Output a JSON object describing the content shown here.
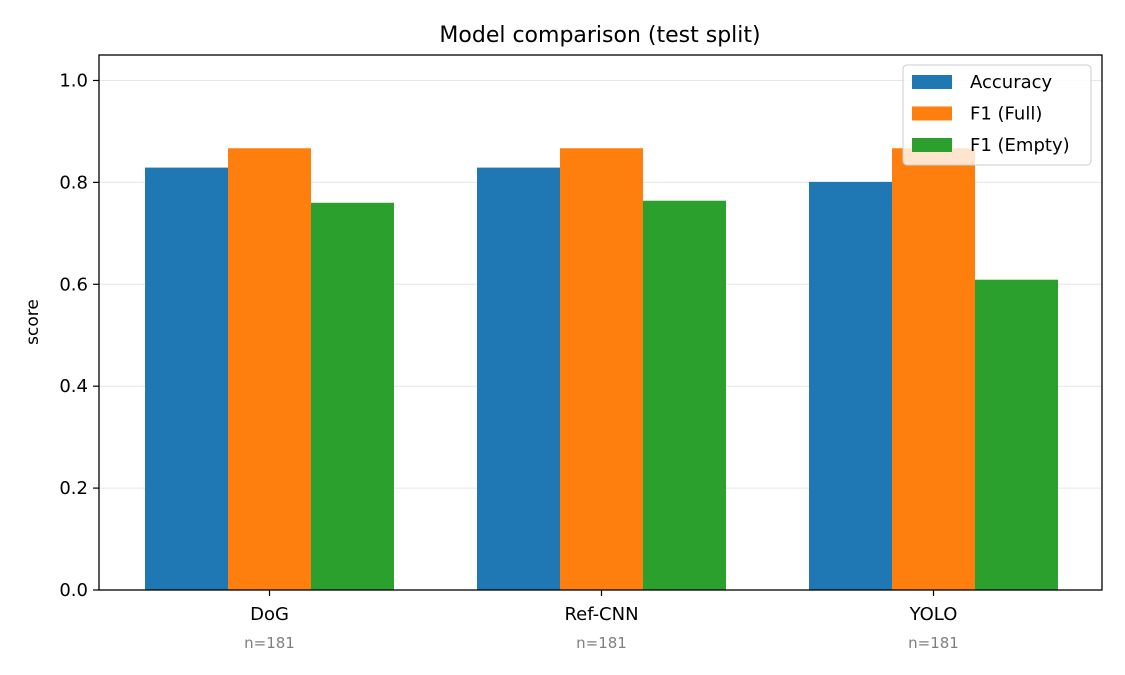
{
  "chart_data": {
    "type": "bar",
    "title": "Model comparison (test split)",
    "xlabel": "",
    "ylabel": "score",
    "categories": [
      "DoG",
      "Ref-CNN",
      "YOLO"
    ],
    "category_counts": [
      "n=181",
      "n=181",
      "n=181"
    ],
    "series": [
      {
        "name": "Accuracy",
        "color": "#1f77b4",
        "values": [
          0.829,
          0.829,
          0.801
        ]
      },
      {
        "name": "F1 (Full)",
        "color": "#ff7f0e",
        "values": [
          0.867,
          0.867,
          0.867
        ]
      },
      {
        "name": "F1 (Empty)",
        "color": "#2ca02c",
        "values": [
          0.76,
          0.764,
          0.609
        ]
      }
    ],
    "ylim": [
      0,
      1.0
    ],
    "yticks": [
      0.0,
      0.2,
      0.4,
      0.6,
      0.8,
      1.0
    ],
    "ytick_labels": [
      "0.0",
      "0.2",
      "0.4",
      "0.6",
      "0.8",
      "1.0"
    ],
    "grid": "horizontal",
    "legend_position": "top-right"
  }
}
